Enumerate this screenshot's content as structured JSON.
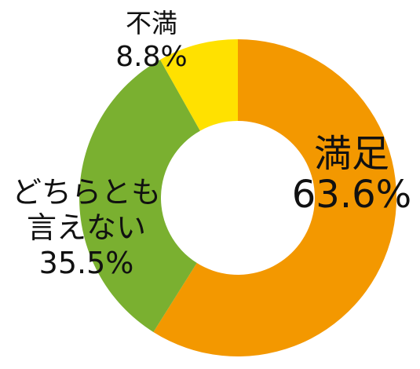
{
  "chart_data": {
    "type": "pie",
    "donut": true,
    "slices": [
      {
        "name": "満足",
        "value": 63.6,
        "label": "63.6%",
        "color": "#F39800"
      },
      {
        "name": "どちらとも言えない",
        "label_lines": [
          "どちらとも",
          "言えない"
        ],
        "value": 35.5,
        "label": "35.5%",
        "color": "#7AB030"
      },
      {
        "name": "不満",
        "value": 8.8,
        "label": "8.8%",
        "color": "#FFE100"
      }
    ],
    "start_angle_deg": 0,
    "direction": "clockwise"
  }
}
